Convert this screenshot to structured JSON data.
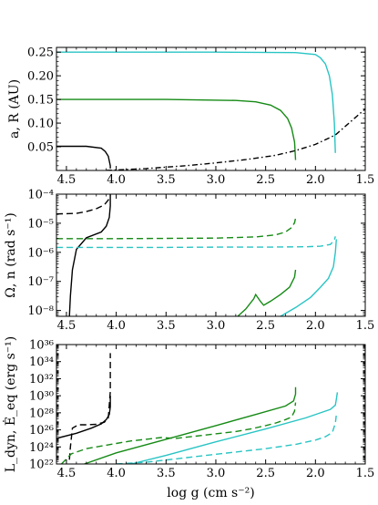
{
  "chart_data": [
    {
      "type": "line",
      "ylabel": "a, R (AU)",
      "xlabel": "",
      "xlim": [
        4.6,
        1.5
      ],
      "ylim": [
        0.0,
        0.26
      ],
      "yscale": "linear",
      "xticks": [
        "4.5",
        "4.0",
        "3.5",
        "3.0",
        "2.5",
        "2.0",
        "1.5"
      ],
      "yticks": [
        "0.05",
        "0.10",
        "0.15",
        "0.20",
        "0.25"
      ],
      "ytick_values": [
        0.05,
        0.1,
        0.15,
        0.2,
        0.25
      ],
      "series": [
        {
          "color": "#000000",
          "dash": "solid",
          "x": [
            4.6,
            4.3,
            4.15,
            4.11,
            4.08,
            4.07,
            4.06,
            4.06
          ],
          "y": [
            0.051,
            0.051,
            0.047,
            0.04,
            0.03,
            0.02,
            0.01,
            0.004
          ]
        },
        {
          "color": "#158a15",
          "dash": "solid",
          "x": [
            4.6,
            3.5,
            2.8,
            2.6,
            2.45,
            2.35,
            2.28,
            2.24,
            2.21,
            2.2
          ],
          "y": [
            0.15,
            0.15,
            0.148,
            0.145,
            0.138,
            0.127,
            0.11,
            0.09,
            0.06,
            0.022
          ]
        },
        {
          "color": "#29c4c4",
          "dash": "solid",
          "x": [
            4.6,
            3.0,
            2.2,
            2.0,
            1.95,
            1.9,
            1.86,
            1.83,
            1.81,
            1.8
          ],
          "y": [
            0.25,
            0.25,
            0.249,
            0.245,
            0.238,
            0.225,
            0.2,
            0.16,
            0.1,
            0.037
          ]
        },
        {
          "color": "#000000",
          "dash": "dashdot",
          "x": [
            4.1,
            3.7,
            3.3,
            3.0,
            2.7,
            2.4,
            2.2,
            2.0,
            1.8,
            1.5
          ],
          "y": [
            0.0,
            0.004,
            0.01,
            0.016,
            0.023,
            0.032,
            0.042,
            0.055,
            0.075,
            0.13
          ]
        }
      ]
    },
    {
      "type": "line",
      "ylabel": "Ω, n (rad s⁻¹)",
      "xlabel": "",
      "xlim": [
        4.6,
        1.5
      ],
      "yscale": "log",
      "ylim_exp": [
        -8.2,
        -4
      ],
      "xticks": [
        "4.5",
        "4.0",
        "3.5",
        "3.0",
        "2.5",
        "2.0",
        "1.5"
      ],
      "yticks": [
        "10⁻⁸",
        "10⁻⁷",
        "10⁻⁶",
        "10⁻⁵",
        "10⁻⁴"
      ],
      "ytick_exp": [
        -8,
        -7,
        -6,
        -5,
        -4
      ],
      "series": [
        {
          "color": "#000000",
          "dash": "solid",
          "x": [
            4.47,
            4.46,
            4.44,
            4.4,
            4.3,
            4.15,
            4.1,
            4.07,
            4.06,
            4.06
          ],
          "y": [
            -8.2,
            -7.5,
            -6.6,
            -5.9,
            -5.5,
            -5.3,
            -5.1,
            -4.8,
            -4.4,
            -4.0
          ]
        },
        {
          "color": "#000000",
          "dash": "dashed",
          "x": [
            4.6,
            4.4,
            4.3,
            4.2,
            4.12,
            4.08,
            4.06
          ],
          "y": [
            -4.68,
            -4.66,
            -4.6,
            -4.5,
            -4.37,
            -4.2,
            -4.05
          ]
        },
        {
          "color": "#158a15",
          "dash": "solid",
          "x": [
            2.78,
            2.7,
            2.62,
            2.6,
            2.55,
            2.52,
            2.45,
            2.35,
            2.26,
            2.21,
            2.2
          ],
          "y": [
            -8.2,
            -7.95,
            -7.6,
            -7.45,
            -7.7,
            -7.82,
            -7.68,
            -7.45,
            -7.2,
            -6.85,
            -6.6
          ]
        },
        {
          "color": "#158a15",
          "dash": "dashed",
          "x": [
            4.6,
            4.0,
            3.5,
            3.0,
            2.6,
            2.4,
            2.3,
            2.24,
            2.21,
            2.2
          ],
          "y": [
            -5.53,
            -5.53,
            -5.52,
            -5.51,
            -5.47,
            -5.4,
            -5.3,
            -5.15,
            -4.98,
            -4.82
          ]
        },
        {
          "color": "#29c4c4",
          "dash": "solid",
          "x": [
            2.35,
            2.2,
            2.05,
            1.95,
            1.87,
            1.82,
            1.8,
            1.79
          ],
          "y": [
            -8.2,
            -7.9,
            -7.55,
            -7.2,
            -6.9,
            -6.5,
            -6.0,
            -5.55
          ]
        },
        {
          "color": "#29c4c4",
          "dash": "dashed",
          "x": [
            4.6,
            4.0,
            3.5,
            3.0,
            2.5,
            2.1,
            1.95,
            1.85,
            1.81,
            1.8
          ],
          "y": [
            -5.83,
            -5.83,
            -5.83,
            -5.82,
            -5.82,
            -5.81,
            -5.79,
            -5.73,
            -5.58,
            -5.45
          ]
        }
      ]
    },
    {
      "type": "line",
      "ylabel": "L_dyn, Ė_eq (erg s⁻¹)",
      "xlabel": "log g (cm s⁻²)",
      "xlim": [
        4.6,
        1.5
      ],
      "yscale": "log",
      "ylim_exp": [
        22,
        36
      ],
      "xticks": [
        "4.5",
        "4.0",
        "3.5",
        "3.0",
        "2.5",
        "2.0",
        "1.5"
      ],
      "yticks": [
        "10²²",
        "10²⁴",
        "10²⁶",
        "10²⁸",
        "10³⁰",
        "10³²",
        "10³⁴",
        "10³⁶"
      ],
      "ytick_exp": [
        22,
        24,
        26,
        28,
        30,
        32,
        34,
        36
      ],
      "series": [
        {
          "color": "#000000",
          "dash": "solid",
          "x": [
            4.6,
            4.4,
            4.25,
            4.15,
            4.1,
            4.07,
            4.06,
            4.06
          ],
          "y": [
            25.0,
            25.6,
            26.2,
            26.7,
            27.2,
            27.8,
            28.7,
            30.0
          ]
        },
        {
          "color": "#000000",
          "dash": "dashed",
          "x": [
            4.47,
            4.46,
            4.44,
            4.38,
            4.3,
            4.2,
            4.12,
            4.08,
            4.06,
            4.06
          ],
          "y": [
            22.5,
            24.0,
            26.2,
            26.6,
            26.6,
            26.65,
            26.9,
            27.4,
            30.5,
            35.0
          ]
        },
        {
          "color": "#158a15",
          "dash": "solid",
          "x": [
            4.32,
            4.0,
            3.5,
            3.0,
            2.6,
            2.3,
            2.22,
            2.2,
            2.2
          ],
          "y": [
            22.0,
            23.3,
            24.9,
            26.5,
            27.8,
            28.8,
            29.4,
            30.2,
            31.0
          ]
        },
        {
          "color": "#158a15",
          "dash": "dashed",
          "x": [
            4.55,
            4.45,
            4.3,
            4.15,
            4.0,
            3.85,
            3.7,
            3.55,
            3.4,
            3.25,
            3.1,
            2.95,
            2.8,
            2.65,
            2.5,
            2.4,
            2.3,
            2.24,
            2.21,
            2.2
          ],
          "y": [
            22.0,
            23.2,
            23.8,
            24.1,
            24.4,
            24.7,
            24.9,
            25.1,
            25.0,
            25.2,
            25.4,
            25.6,
            25.8,
            26.1,
            26.5,
            26.8,
            27.2,
            27.5,
            28.2,
            29.2
          ]
        },
        {
          "color": "#29c4c4",
          "dash": "solid",
          "x": [
            3.85,
            3.5,
            3.0,
            2.5,
            2.1,
            1.95,
            1.85,
            1.8,
            1.79,
            1.78
          ],
          "y": [
            22.0,
            23.0,
            24.6,
            26.1,
            27.4,
            28.0,
            28.4,
            28.9,
            29.6,
            30.4
          ]
        },
        {
          "color": "#29c4c4",
          "dash": "dashed",
          "x": [
            4.0,
            3.7,
            3.4,
            3.1,
            2.8,
            2.5,
            2.2,
            2.0,
            1.9,
            1.83,
            1.8,
            1.79
          ],
          "y": [
            22.0,
            22.2,
            22.6,
            23.0,
            23.4,
            23.8,
            24.3,
            24.8,
            25.2,
            25.7,
            26.8,
            27.8
          ]
        }
      ]
    }
  ]
}
